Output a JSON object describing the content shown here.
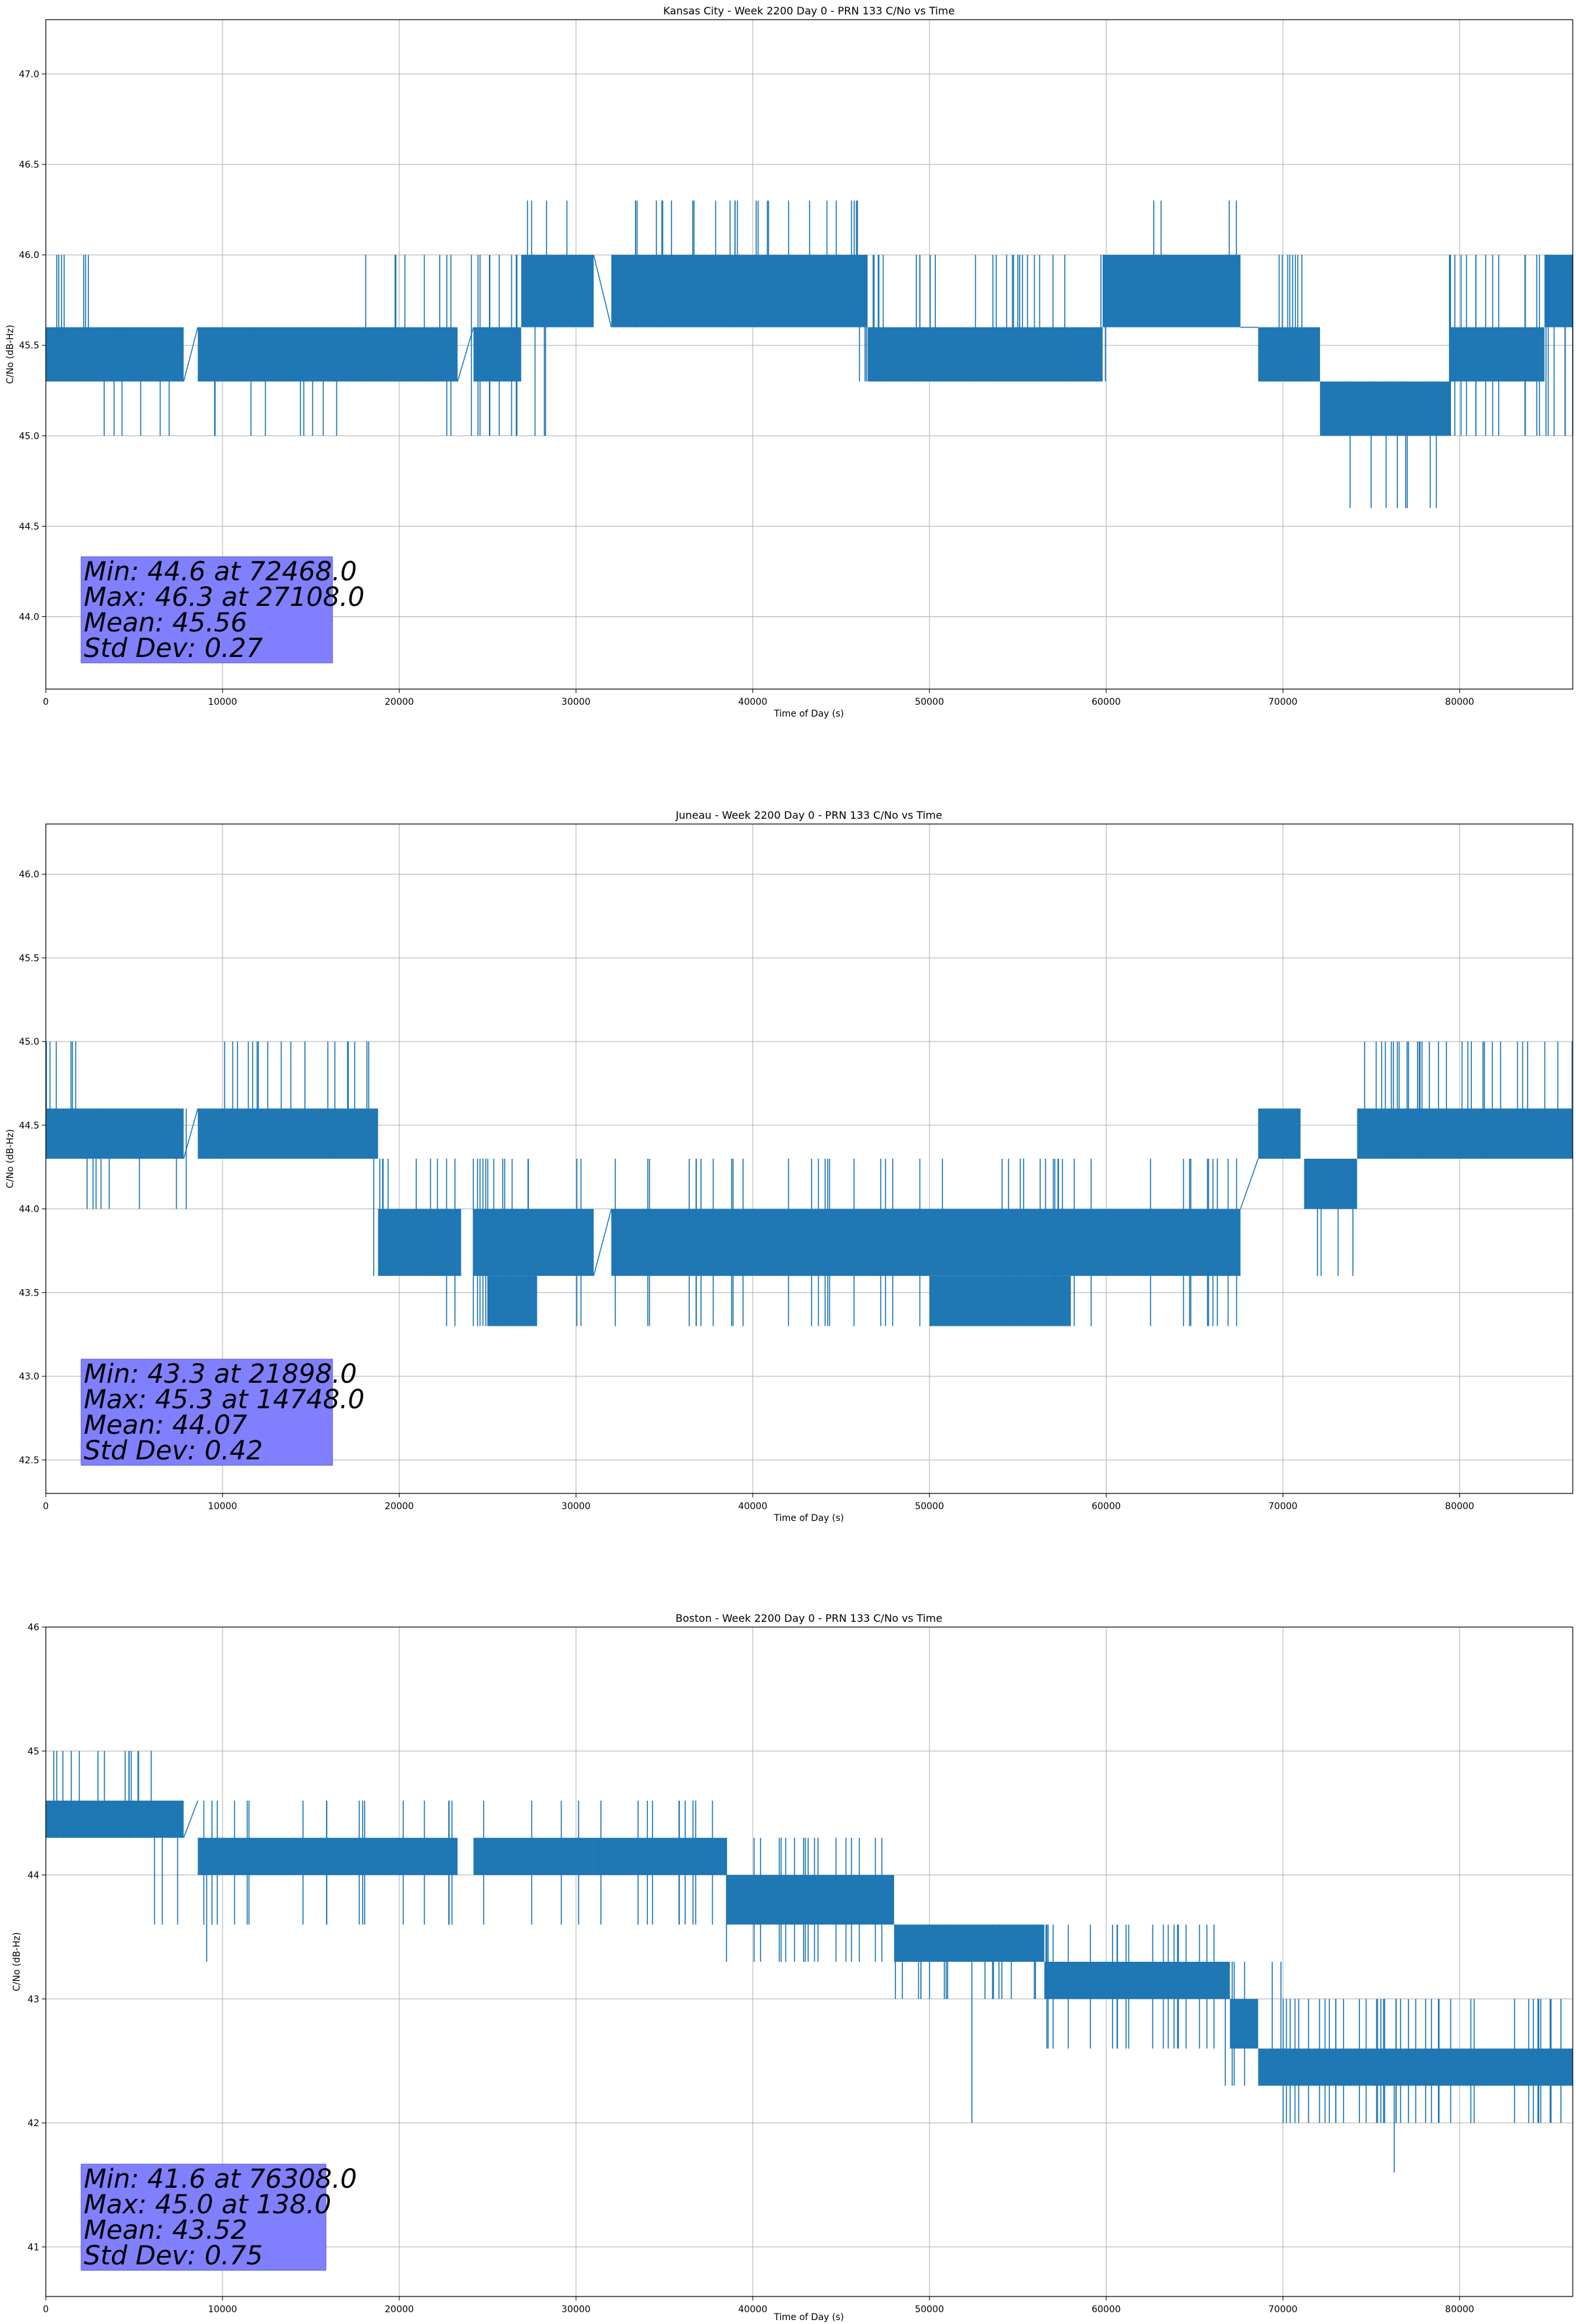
{
  "chart_data": [
    {
      "type": "line",
      "title": "Kansas City - Week 2200 Day 0 - PRN 133 C/No vs Time",
      "xlabel": "Time of Day (s)",
      "ylabel": "C/No (dB-Hz)",
      "xlim": [
        0,
        86400
      ],
      "ylim": [
        43.6,
        47.3
      ],
      "xticks": [
        0,
        10000,
        20000,
        30000,
        40000,
        50000,
        60000,
        70000,
        80000
      ],
      "yticks": [
        44.0,
        44.5,
        45.0,
        45.5,
        46.0,
        46.5,
        47.0
      ],
      "ytick_labels": [
        "44.0",
        "44.5",
        "45.0",
        "45.5",
        "46.0",
        "46.5",
        "47.0"
      ],
      "grid": true,
      "line_color": "#1f77b4",
      "segments": [
        {
          "x": [
            0,
            7800
          ],
          "bands": [
            [
              45.3,
              45.6
            ]
          ]
        },
        {
          "x": [
            8600,
            23300
          ],
          "bands": [
            [
              45.3,
              45.6
            ]
          ]
        },
        {
          "x": [
            24200,
            26900
          ],
          "bands": [
            [
              45.3,
              45.6
            ]
          ]
        },
        {
          "x": [
            26900,
            31000
          ],
          "bands": [
            [
              45.6,
              46.0
            ]
          ]
        },
        {
          "x": [
            32000,
            46500
          ],
          "bands": [
            [
              45.6,
              46.0
            ]
          ]
        },
        {
          "x": [
            46500,
            59800
          ],
          "bands": [
            [
              45.3,
              45.6
            ]
          ]
        },
        {
          "x": [
            59800,
            67600
          ],
          "bands": [
            [
              45.6,
              46.0
            ]
          ]
        },
        {
          "x": [
            68600,
            72100
          ],
          "bands": [
            [
              45.3,
              45.6
            ]
          ]
        },
        {
          "x": [
            72100,
            79500
          ],
          "bands": [
            [
              45.0,
              45.3
            ]
          ]
        },
        {
          "x": [
            79500,
            84800
          ],
          "bands": [
            [
              45.3,
              45.6
            ]
          ]
        },
        {
          "x": [
            84800,
            86400
          ],
          "bands": [
            [
              45.6,
              46.0
            ]
          ]
        }
      ],
      "connectors": [
        [
          7800,
          45.3,
          8600,
          45.6
        ],
        [
          23300,
          45.3,
          24200,
          45.6
        ],
        [
          31000,
          46.0,
          32000,
          45.6
        ],
        [
          67600,
          45.6,
          68600,
          45.6
        ]
      ],
      "spikes": [
        {
          "range": [
            0,
            3000
          ],
          "lo": 45.3,
          "hi": 46.0,
          "n": 7
        },
        {
          "range": [
            3000,
            8000
          ],
          "lo": 45.0,
          "hi": 45.6,
          "n": 6
        },
        {
          "range": [
            9000,
            17000
          ],
          "lo": 45.0,
          "hi": 45.6,
          "n": 9
        },
        {
          "range": [
            17000,
            23000
          ],
          "lo": 45.3,
          "hi": 46.0,
          "n": 6
        },
        {
          "range": [
            22000,
            29000
          ],
          "lo": 45.0,
          "hi": 46.0,
          "n": 14
        },
        {
          "range": [
            27000,
            31000
          ],
          "lo": 45.6,
          "hi": 46.3,
          "n": 4
        },
        {
          "range": [
            33000,
            46000
          ],
          "lo": 45.6,
          "hi": 46.3,
          "n": 26
        },
        {
          "range": [
            46000,
            60000
          ],
          "lo": 45.3,
          "hi": 46.0,
          "n": 30
        },
        {
          "range": [
            60000,
            67500
          ],
          "lo": 45.6,
          "hi": 46.3,
          "n": 4
        },
        {
          "range": [
            69000,
            72000
          ],
          "lo": 45.3,
          "hi": 46.0,
          "n": 8
        },
        {
          "range": [
            72500,
            79000
          ],
          "lo": 44.6,
          "hi": 45.3,
          "n": 8
        },
        {
          "range": [
            79000,
            86400
          ],
          "lo": 45.0,
          "hi": 46.0,
          "n": 20
        }
      ],
      "stats": [
        "Min: 44.6 at 72468.0",
        "Max: 46.3 at 27108.0",
        "Mean: 45.56",
        "Std Dev: 0.27"
      ]
    },
    {
      "type": "line",
      "title": "Juneau - Week 2200 Day 0 - PRN 133 C/No vs Time",
      "xlabel": "Time of Day (s)",
      "ylabel": "C/No (dB-Hz)",
      "xlim": [
        0,
        86400
      ],
      "ylim": [
        42.3,
        46.3
      ],
      "xticks": [
        0,
        10000,
        20000,
        30000,
        40000,
        50000,
        60000,
        70000,
        80000
      ],
      "yticks": [
        42.5,
        43.0,
        43.5,
        44.0,
        44.5,
        45.0,
        45.5,
        46.0
      ],
      "ytick_labels": [
        "42.5",
        "43.0",
        "43.5",
        "44.0",
        "44.5",
        "45.0",
        "45.5",
        "46.0"
      ],
      "grid": true,
      "line_color": "#1f77b4",
      "segments": [
        {
          "x": [
            0,
            7800
          ],
          "bands": [
            [
              44.3,
              44.6
            ]
          ]
        },
        {
          "x": [
            8600,
            18800
          ],
          "bands": [
            [
              44.3,
              44.6
            ]
          ]
        },
        {
          "x": [
            18800,
            23500
          ],
          "bands": [
            [
              43.6,
              44.0
            ]
          ]
        },
        {
          "x": [
            24200,
            31000
          ],
          "bands": [
            [
              43.6,
              44.0
            ]
          ]
        },
        {
          "x": [
            25000,
            27800
          ],
          "bands": [
            [
              43.3,
              43.6
            ]
          ]
        },
        {
          "x": [
            32000,
            67600
          ],
          "bands": [
            [
              43.6,
              44.0
            ]
          ]
        },
        {
          "x": [
            50000,
            58000
          ],
          "bands": [
            [
              43.3,
              43.6
            ]
          ]
        },
        {
          "x": [
            68600,
            71000
          ],
          "bands": [
            [
              44.3,
              44.6
            ]
          ]
        },
        {
          "x": [
            71200,
            74200
          ],
          "bands": [
            [
              44.0,
              44.3
            ]
          ]
        },
        {
          "x": [
            74200,
            86400
          ],
          "bands": [
            [
              44.3,
              44.6
            ]
          ]
        }
      ],
      "connectors": [
        [
          7800,
          44.3,
          8600,
          44.6
        ],
        [
          31000,
          43.6,
          32000,
          44.0
        ],
        [
          67600,
          44.0,
          68600,
          44.3
        ]
      ],
      "spikes": [
        {
          "range": [
            0,
            2200
          ],
          "lo": 44.3,
          "hi": 45.0,
          "n": 6
        },
        {
          "range": [
            2200,
            8000
          ],
          "lo": 44.0,
          "hi": 44.6,
          "n": 8
        },
        {
          "range": [
            10000,
            18500
          ],
          "lo": 44.3,
          "hi": 45.0,
          "n": 18
        },
        {
          "range": [
            18000,
            23000
          ],
          "lo": 43.6,
          "hi": 44.3,
          "n": 8
        },
        {
          "range": [
            22000,
            31000
          ],
          "lo": 43.3,
          "hi": 44.3,
          "n": 16
        },
        {
          "range": [
            32000,
            50000
          ],
          "lo": 43.3,
          "hi": 44.3,
          "n": 22
        },
        {
          "range": [
            50000,
            67500
          ],
          "lo": 43.3,
          "hi": 44.3,
          "n": 24
        },
        {
          "range": [
            71500,
            74500
          ],
          "lo": 43.6,
          "hi": 44.3,
          "n": 4
        },
        {
          "range": [
            74500,
            86400
          ],
          "lo": 44.3,
          "hi": 45.0,
          "n": 30
        }
      ],
      "stats": [
        "Min: 43.3 at 21898.0",
        "Max: 45.3 at 14748.0",
        "Mean: 44.07",
        "Std Dev: 0.42"
      ]
    },
    {
      "type": "line",
      "title": "Boston - Week 2200 Day 0 - PRN 133 C/No vs Time",
      "xlabel": "Time of Day (s)",
      "ylabel": "C/No (dB-Hz)",
      "xlim": [
        0,
        86400
      ],
      "ylim": [
        40.6,
        46.0
      ],
      "xticks": [
        0,
        10000,
        20000,
        30000,
        40000,
        50000,
        60000,
        70000,
        80000
      ],
      "yticks": [
        41,
        42,
        43,
        44,
        45,
        46
      ],
      "ytick_labels": [
        "41",
        "42",
        "43",
        "44",
        "45",
        "46"
      ],
      "grid": true,
      "line_color": "#1f77b4",
      "segments": [
        {
          "x": [
            0,
            7800
          ],
          "bands": [
            [
              44.3,
              44.6
            ]
          ]
        },
        {
          "x": [
            8600,
            23300
          ],
          "bands": [
            [
              44.0,
              44.3
            ]
          ]
        },
        {
          "x": [
            24200,
            31000
          ],
          "bands": [
            [
              44.0,
              44.3
            ]
          ]
        },
        {
          "x": [
            31000,
            38500
          ],
          "bands": [
            [
              44.0,
              44.3
            ]
          ]
        },
        {
          "x": [
            38500,
            48000
          ],
          "bands": [
            [
              43.6,
              44.0
            ]
          ]
        },
        {
          "x": [
            48000,
            56500
          ],
          "bands": [
            [
              43.3,
              43.6
            ]
          ]
        },
        {
          "x": [
            56500,
            67000
          ],
          "bands": [
            [
              43.0,
              43.3
            ]
          ]
        },
        {
          "x": [
            67000,
            68600
          ],
          "bands": [
            [
              42.6,
              43.0
            ]
          ]
        },
        {
          "x": [
            68600,
            86400
          ],
          "bands": [
            [
              42.3,
              42.6
            ]
          ]
        }
      ],
      "connectors": [
        [
          7800,
          44.3,
          8600,
          44.6
        ]
      ],
      "spikes": [
        {
          "range": [
            0,
            6000
          ],
          "lo": 44.3,
          "hi": 45.0,
          "n": 14
        },
        {
          "range": [
            6000,
            23000
          ],
          "lo": 43.6,
          "hi": 44.6,
          "n": 20
        },
        {
          "range": [
            24000,
            38000
          ],
          "lo": 43.6,
          "hi": 44.6,
          "n": 14
        },
        {
          "range": [
            38500,
            48000
          ],
          "lo": 43.3,
          "hi": 44.3,
          "n": 18
        },
        {
          "range": [
            48000,
            57000
          ],
          "lo": 43.0,
          "hi": 43.6,
          "n": 18
        },
        {
          "range": [
            56500,
            67500
          ],
          "lo": 42.6,
          "hi": 43.6,
          "n": 20
        },
        {
          "range": [
            66000,
            70000
          ],
          "lo": 42.3,
          "hi": 43.3,
          "n": 6
        },
        {
          "range": [
            70000,
            86400
          ],
          "lo": 42.0,
          "hi": 43.0,
          "n": 40
        }
      ],
      "outliers": [
        [
          9100,
          43.3,
          44.0
        ],
        [
          52400,
          42.0,
          43.3
        ],
        [
          76300,
          41.6,
          42.3
        ]
      ],
      "stats": [
        "Min: 41.6 at 76308.0",
        "Max: 45.0 at 138.0",
        "Mean: 43.52",
        "Std Dev: 0.75"
      ]
    }
  ]
}
